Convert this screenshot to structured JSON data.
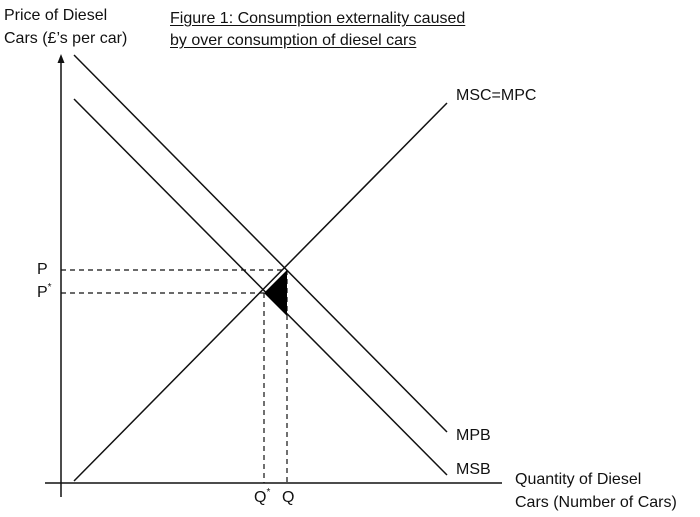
{
  "title": {
    "line1": "Figure 1: Consumption externality caused",
    "line2": "by over consumption of diesel cars"
  },
  "y_axis": {
    "line1": "Price of Diesel",
    "line2": "Cars (£’s per car)"
  },
  "x_axis": {
    "line1": "Quantity of Diesel",
    "line2": "Cars (Number of Cars)"
  },
  "curves": {
    "supply": "MSC=MPC",
    "private_benefit": "MPB",
    "social_benefit": "MSB"
  },
  "price_labels": {
    "market": "P",
    "optimal": "P",
    "optimal_mark": "*"
  },
  "quantity_labels": {
    "optimal": "Q",
    "optimal_mark": "*",
    "market": "Q"
  },
  "colors": {
    "line": "#111111",
    "welfare_loss": "#000000"
  }
}
